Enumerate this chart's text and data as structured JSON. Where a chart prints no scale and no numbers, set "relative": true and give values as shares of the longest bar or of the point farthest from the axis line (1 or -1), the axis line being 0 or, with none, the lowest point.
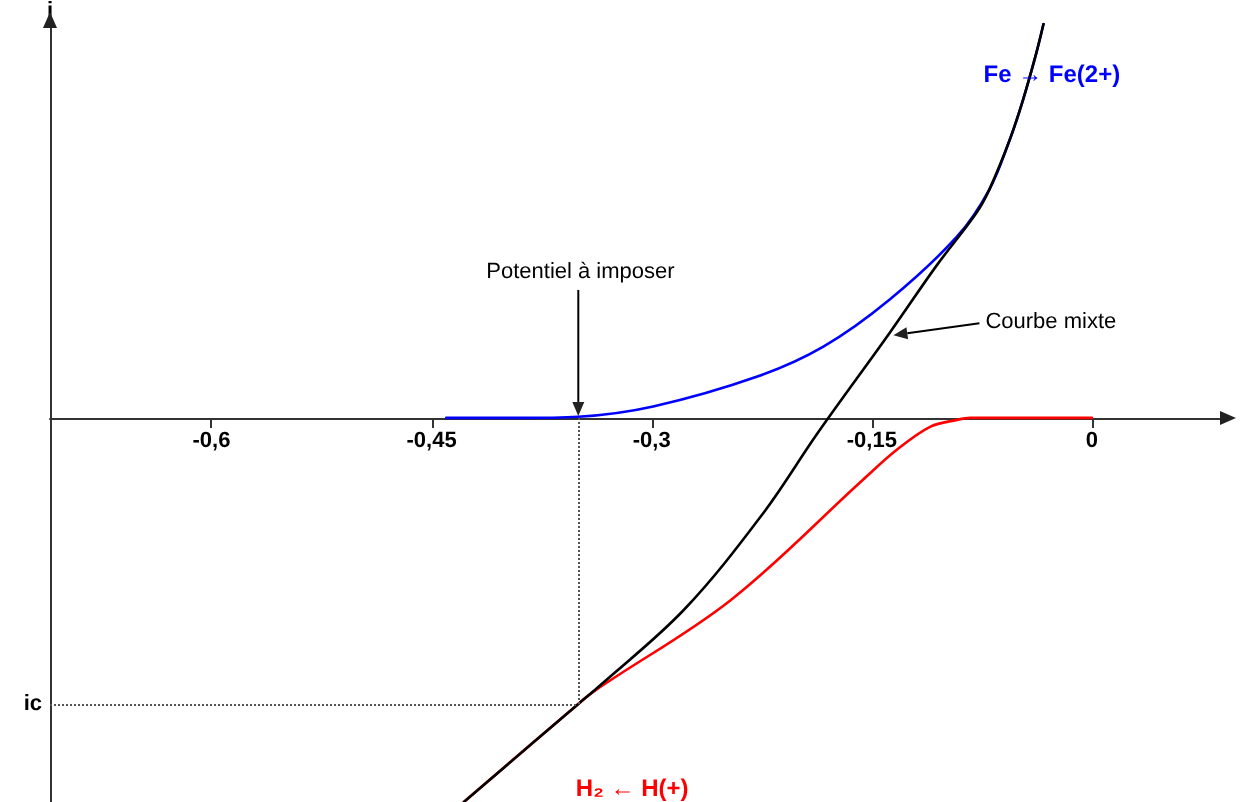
{
  "chart_data": {
    "type": "line",
    "ylabel": "i",
    "relative": true,
    "marker": "none",
    "xlim": [
      -0.71,
      0.09
    ],
    "xticks": [
      {
        "value": -0.6,
        "label": "-0,6"
      },
      {
        "value": -0.45,
        "label": "-0,45"
      },
      {
        "value": -0.3,
        "label": "-0,3"
      },
      {
        "value": -0.15,
        "label": "-0,15"
      },
      0
    ],
    "series": [
      {
        "name": "Fe → Fe(2+)",
        "color": "#0000ff",
        "x": [
          -0.44,
          -0.391,
          -0.35,
          -0.299,
          -0.228,
          -0.183,
          -0.138,
          -0.092,
          -0.07,
          -0.056,
          -0.047,
          -0.038,
          -0.033
        ],
        "values": [
          0,
          0,
          0.003,
          0.029,
          0.105,
          0.181,
          0.3,
          0.46,
          0.579,
          0.706,
          0.807,
          0.925,
          1
        ]
      },
      {
        "name": "H₂ ← H(+)",
        "color": "#ff0000",
        "x": [
          -0.428,
          -0.35,
          -0.337,
          -0.246,
          -0.156,
          -0.133,
          -0.11,
          -0.092,
          -0.083,
          0
        ],
        "values": [
          -0.975,
          -0.726,
          -0.688,
          -0.462,
          -0.157,
          -0.081,
          -0.022,
          -0.005,
          0,
          0
        ]
      },
      {
        "name": "Courbe mixte",
        "color": "#000000",
        "x": [
          -0.428,
          -0.35,
          -0.337,
          -0.278,
          -0.224,
          -0.187,
          -0.138,
          -0.106,
          -0.079,
          -0.07,
          -0.056,
          -0.047,
          -0.038,
          -0.033
        ],
        "values": [
          -0.975,
          -0.726,
          -0.685,
          -0.487,
          -0.242,
          -0.039,
          0.215,
          0.386,
          0.519,
          0.579,
          0.706,
          0.807,
          0.925,
          1
        ]
      }
    ],
    "ref_lines": [
      {
        "axis": "y",
        "value": -0.726,
        "label": "ic",
        "color": "#555555",
        "line_style": "dotted"
      },
      {
        "axis": "x",
        "value": -0.35,
        "color": "#555555",
        "line_style": "dotted"
      }
    ],
    "annotations": [
      {
        "text": "Potentiel à imposer",
        "x": -0.35,
        "y": 0
      }
    ]
  }
}
